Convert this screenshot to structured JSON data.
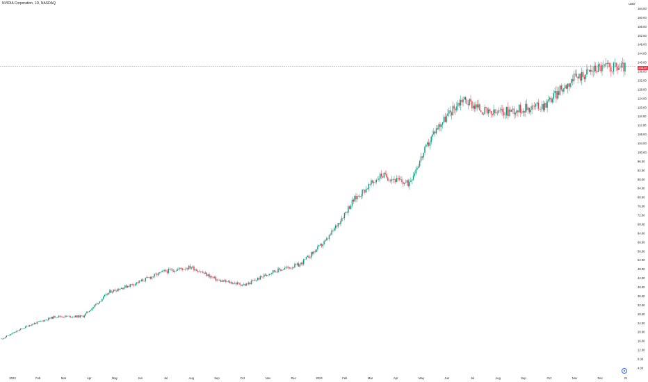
{
  "header": {
    "title": "NVIDIA Corporation, 1D, NASDAQ",
    "currency": "USD"
  },
  "last_price_label": "138.25",
  "chart_data": {
    "type": "candlestick",
    "title": "NVIDIA Corporation, 1D, NASDAQ",
    "y_axis_unit": "USD",
    "ylim": [
      4,
      166
    ],
    "y_ticks": [
      4,
      8,
      12,
      16,
      20,
      24,
      28,
      32,
      36,
      40,
      44,
      48,
      52,
      56,
      60,
      64,
      68,
      72,
      76,
      80,
      84,
      88,
      92,
      96,
      100,
      104,
      108,
      112,
      116,
      120,
      124,
      128,
      132,
      136,
      140,
      144,
      148,
      152,
      156,
      160,
      164
    ],
    "x_ticks": [
      "2023",
      "Feb",
      "Mar",
      "Apr",
      "May",
      "Jun",
      "Jul",
      "Aug",
      "Sep",
      "Oct",
      "Nov",
      "Dec",
      "2024",
      "Feb",
      "Mar",
      "Apr",
      "May",
      "Jun",
      "Jul",
      "Aug",
      "Sep",
      "Oct",
      "Nov",
      "Dec",
      "21"
    ],
    "grid": false,
    "up_color": "#089981",
    "down_color": "#f23645",
    "last_price": 138.25,
    "price_trend": [
      {
        "month": "2023-01",
        "close": 17
      },
      {
        "month": "2023-02",
        "close": 23
      },
      {
        "month": "2023-03",
        "close": 27
      },
      {
        "month": "2023-04",
        "close": 27
      },
      {
        "month": "2023-05",
        "close": 38
      },
      {
        "month": "2023-06",
        "close": 42
      },
      {
        "month": "2023-07",
        "close": 47
      },
      {
        "month": "2023-08",
        "close": 49
      },
      {
        "month": "2023-09",
        "close": 43
      },
      {
        "month": "2023-10",
        "close": 41
      },
      {
        "month": "2023-11",
        "close": 47
      },
      {
        "month": "2023-12",
        "close": 50
      },
      {
        "month": "2024-01",
        "close": 61
      },
      {
        "month": "2024-02",
        "close": 79
      },
      {
        "month": "2024-03",
        "close": 90
      },
      {
        "month": "2024-04",
        "close": 86
      },
      {
        "month": "2024-05",
        "close": 110
      },
      {
        "month": "2024-06",
        "close": 124
      },
      {
        "month": "2024-07",
        "close": 117
      },
      {
        "month": "2024-08",
        "close": 119
      },
      {
        "month": "2024-09",
        "close": 121
      },
      {
        "month": "2024-10",
        "close": 132
      },
      {
        "month": "2024-11",
        "close": 138
      },
      {
        "month": "2024-12",
        "close": 138
      }
    ]
  }
}
